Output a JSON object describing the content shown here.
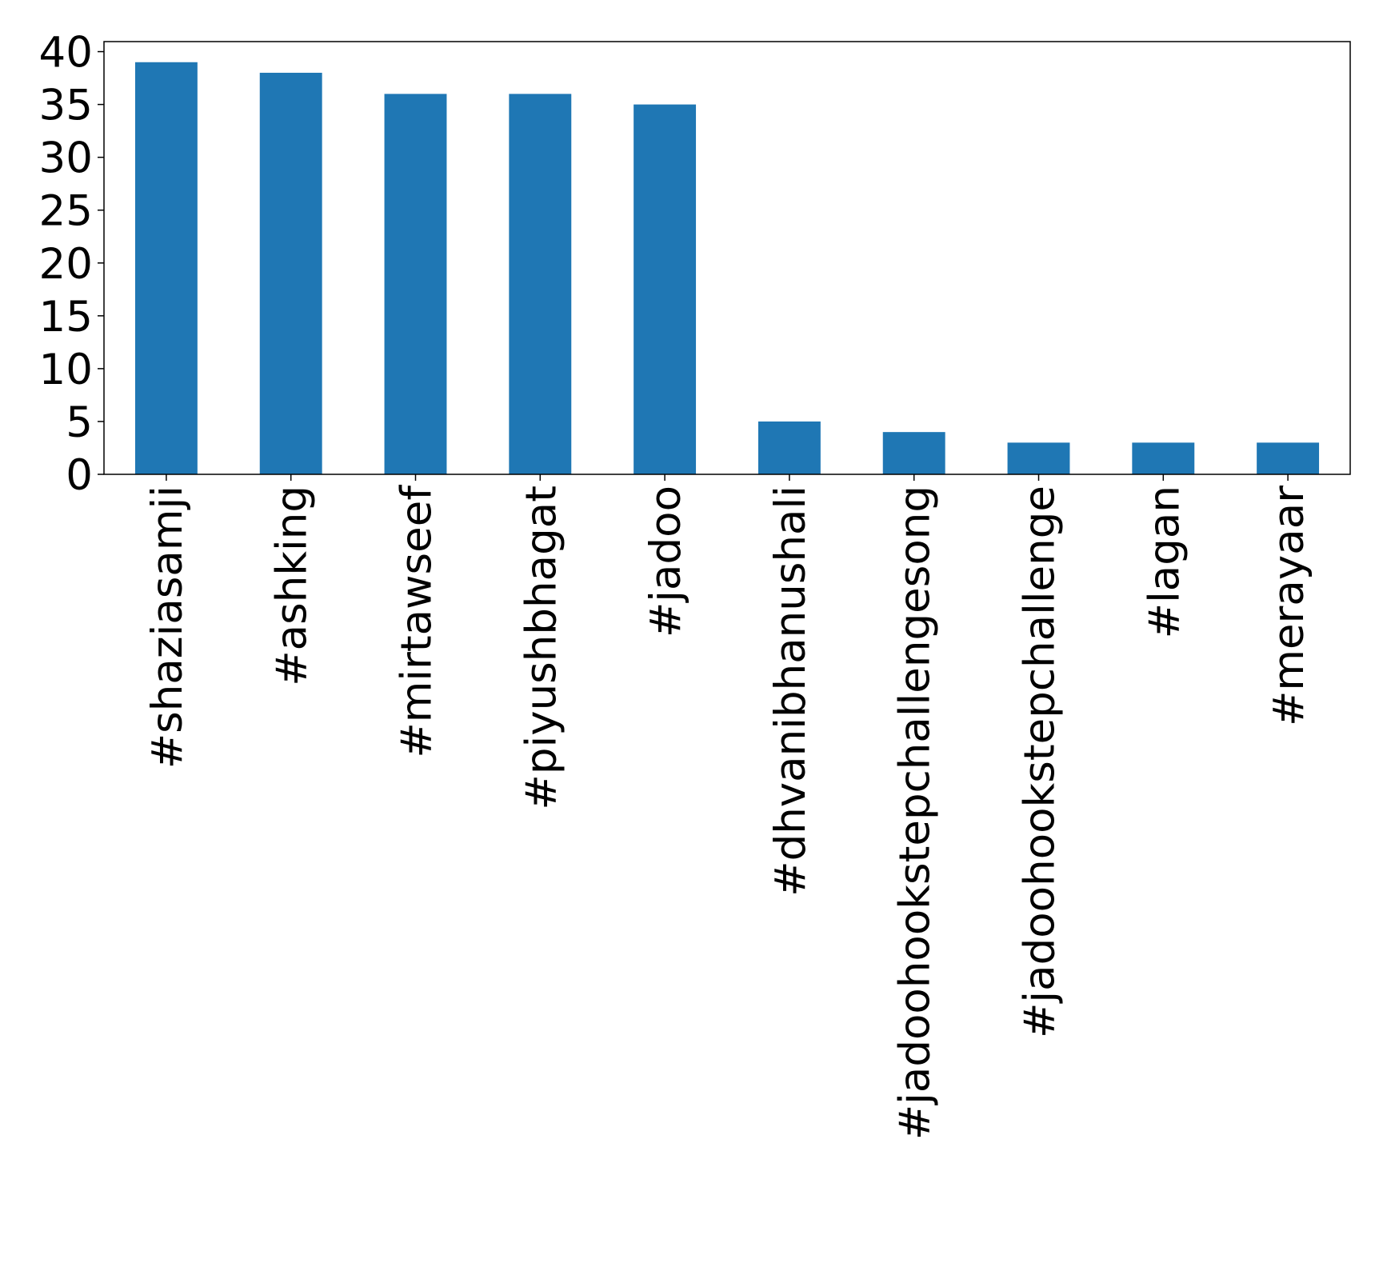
{
  "chart_data": {
    "type": "bar",
    "categories": [
      "#shaziasamji",
      "#ashking",
      "#mirtawseef",
      "#piyushbhagat",
      "#jadoo",
      "#dhvanibhanushali",
      "#jadoohookstepchallengesong",
      "#jadoohookstepchallenge",
      "#lagan",
      "#merayaar"
    ],
    "values": [
      39,
      38,
      36,
      36,
      35,
      5,
      4,
      3,
      3,
      3
    ],
    "color": "#1f77b4",
    "ylim": [
      0,
      40.95
    ],
    "yticks": [
      0,
      5,
      10,
      15,
      20,
      25,
      30,
      35,
      40
    ]
  }
}
